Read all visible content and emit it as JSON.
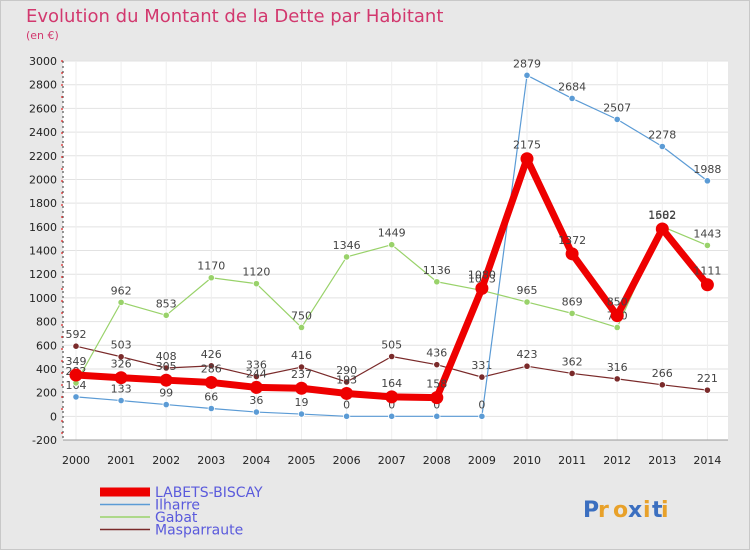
{
  "chart_data": {
    "type": "line",
    "title": "Evolution du Montant de la Dette par Habitant",
    "subtitle": "(en €)",
    "xlabel": "",
    "ylabel": "",
    "x": [
      2000,
      2001,
      2002,
      2003,
      2004,
      2005,
      2006,
      2007,
      2008,
      2009,
      2010,
      2011,
      2012,
      2013,
      2014
    ],
    "ylim": [
      -200,
      3000
    ],
    "yticks": [
      -200,
      0,
      200,
      400,
      600,
      800,
      1000,
      1200,
      1400,
      1600,
      1800,
      2000,
      2200,
      2400,
      2600,
      2800,
      3000
    ],
    "grid": true,
    "legend_position": "bottom-left",
    "series": [
      {
        "name": "Masparraute",
        "color": "#7a2a2a",
        "width": 1.2,
        "values": [
          592,
          503,
          408,
          426,
          336,
          416,
          290,
          505,
          436,
          331,
          423,
          362,
          316,
          266,
          221
        ]
      },
      {
        "name": "Ilharre",
        "color": "#5b9bd5",
        "width": 1.2,
        "values": [
          164,
          133,
          99,
          66,
          36,
          19,
          0,
          0,
          0,
          0,
          2879,
          2684,
          2507,
          2278,
          1988
        ]
      },
      {
        "name": "Gabat",
        "color": "#99d26a",
        "width": 1.2,
        "values": [
          282,
          962,
          853,
          1170,
          1120,
          750,
          1346,
          1449,
          1136,
          1063,
          965,
          869,
          750,
          1602,
          1443
        ]
      },
      {
        "name": "LABETS-BISCAY",
        "color": "#ee0000",
        "width": 7,
        "values": [
          349,
          326,
          305,
          286,
          244,
          237,
          193,
          164,
          158,
          1080,
          2175,
          1372,
          850,
          1582,
          1111
        ]
      }
    ],
    "legend_order": [
      "LABETS-BISCAY",
      "Ilharre",
      "Gabat",
      "Masparraute"
    ]
  },
  "watermark": {
    "text": "Proxiti"
  }
}
